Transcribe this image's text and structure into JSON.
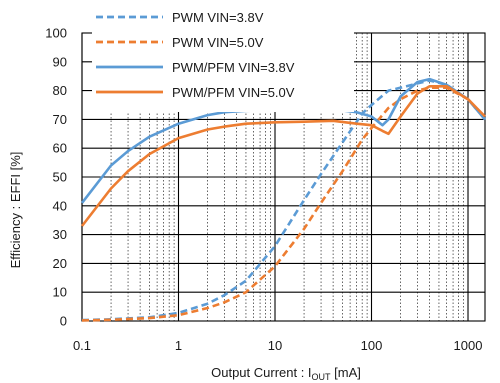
{
  "chart_data": {
    "type": "line",
    "xscale": "log",
    "xlim": [
      0.1,
      1500
    ],
    "ylim": [
      0,
      100
    ],
    "xticks": [
      {
        "value": 0.1,
        "label": "0.1"
      },
      {
        "value": 1,
        "label": "1"
      },
      {
        "value": 10,
        "label": "10"
      },
      {
        "value": 100,
        "label": "100"
      },
      {
        "value": 1000,
        "label": "1000"
      }
    ],
    "yticks": [
      {
        "value": 0,
        "label": "0"
      },
      {
        "value": 10,
        "label": "10"
      },
      {
        "value": 20,
        "label": "20"
      },
      {
        "value": 30,
        "label": "30"
      },
      {
        "value": 40,
        "label": "40"
      },
      {
        "value": 50,
        "label": "50"
      },
      {
        "value": 60,
        "label": "60"
      },
      {
        "value": 70,
        "label": "70"
      },
      {
        "value": 80,
        "label": "80"
      },
      {
        "value": 90,
        "label": "90"
      },
      {
        "value": 100,
        "label": "100"
      }
    ],
    "grid": true,
    "legend_position": "top-left",
    "xlabel": {
      "prefix": "Output Current : I",
      "sub": "OUT",
      "suffix": " [mA]"
    },
    "ylabel": "Efficiency : EFFI [%]",
    "series": [
      {
        "name": "PWM VIN=3.8V",
        "color": "#5b9bd5",
        "dash": "dashed",
        "points": [
          [
            0.1,
            0.3
          ],
          [
            0.2,
            0.6
          ],
          [
            0.5,
            1.3
          ],
          [
            1,
            2.8
          ],
          [
            2,
            6
          ],
          [
            3,
            9
          ],
          [
            5,
            14
          ],
          [
            10,
            26
          ],
          [
            20,
            42
          ],
          [
            30,
            51
          ],
          [
            50,
            62
          ],
          [
            80,
            72
          ],
          [
            100,
            75
          ],
          [
            150,
            80
          ],
          [
            200,
            81
          ],
          [
            300,
            82.5
          ],
          [
            400,
            83.5
          ],
          [
            600,
            82
          ],
          [
            1000,
            77
          ],
          [
            1500,
            70
          ]
        ]
      },
      {
        "name": "PWM VIN=5.0V",
        "color": "#ed7d31",
        "dash": "dashed",
        "points": [
          [
            0.1,
            0.2
          ],
          [
            0.2,
            0.4
          ],
          [
            0.5,
            1
          ],
          [
            1,
            2
          ],
          [
            2,
            4.5
          ],
          [
            3,
            6.5
          ],
          [
            5,
            10
          ],
          [
            10,
            19
          ],
          [
            20,
            32
          ],
          [
            30,
            41
          ],
          [
            50,
            52
          ],
          [
            80,
            63
          ],
          [
            100,
            67
          ],
          [
            150,
            74
          ],
          [
            200,
            77
          ],
          [
            300,
            80
          ],
          [
            400,
            81
          ],
          [
            600,
            81
          ],
          [
            1000,
            77
          ],
          [
            1500,
            70
          ]
        ]
      },
      {
        "name": "PWM/PFM VIN=3.8V",
        "color": "#5b9bd5",
        "dash": "solid",
        "points": [
          [
            0.1,
            41
          ],
          [
            0.2,
            54
          ],
          [
            0.3,
            59
          ],
          [
            0.5,
            64
          ],
          [
            1,
            68.5
          ],
          [
            2,
            71.5
          ],
          [
            3,
            72.5
          ],
          [
            5,
            73
          ],
          [
            10,
            73.3
          ],
          [
            20,
            73.6
          ],
          [
            40,
            73.5
          ],
          [
            70,
            72.5
          ],
          [
            100,
            71
          ],
          [
            130,
            68
          ],
          [
            150,
            70
          ],
          [
            200,
            78
          ],
          [
            300,
            83
          ],
          [
            400,
            84
          ],
          [
            600,
            82
          ],
          [
            1000,
            77
          ],
          [
            1500,
            70
          ]
        ]
      },
      {
        "name": "PWM/PFM VIN=5.0V",
        "color": "#ed7d31",
        "dash": "solid",
        "points": [
          [
            0.1,
            33
          ],
          [
            0.2,
            46
          ],
          [
            0.3,
            52
          ],
          [
            0.5,
            58
          ],
          [
            1,
            63.5
          ],
          [
            2,
            66.5
          ],
          [
            3,
            67.5
          ],
          [
            5,
            68.5
          ],
          [
            10,
            69
          ],
          [
            20,
            69.2
          ],
          [
            40,
            69.5
          ],
          [
            70,
            68.5
          ],
          [
            100,
            68
          ],
          [
            130,
            66
          ],
          [
            150,
            65
          ],
          [
            200,
            71
          ],
          [
            300,
            79
          ],
          [
            400,
            81.5
          ],
          [
            600,
            81.5
          ],
          [
            1000,
            77
          ],
          [
            1500,
            71
          ]
        ]
      }
    ]
  }
}
